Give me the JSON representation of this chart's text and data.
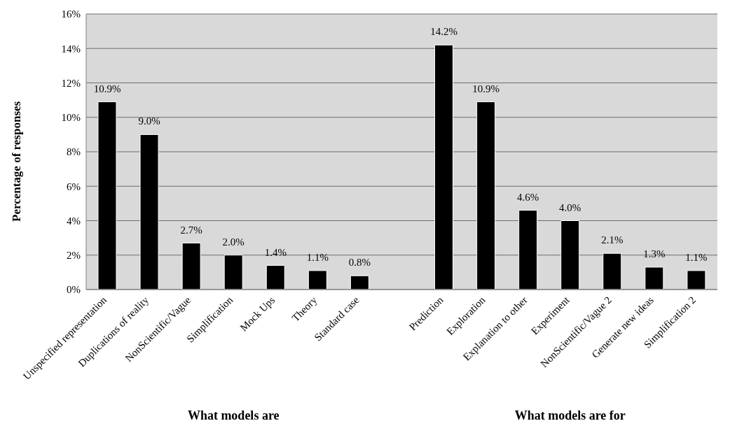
{
  "chart_data": {
    "type": "bar",
    "ylabel": "Percentage of responses",
    "categories": [
      "Unspecified representation",
      "Duplications of reality",
      "NonScientific/Vague",
      "Simplification",
      "Mock Ups",
      "Theory",
      "Standard case",
      null,
      "Prediction",
      "Exploration",
      "Explanation to other",
      "Experiment",
      "NonScientific/Vague 2",
      "Generate new ideas",
      "Simplification 2"
    ],
    "values": [
      10.9,
      9.0,
      2.7,
      2.0,
      1.4,
      1.1,
      0.8,
      null,
      14.2,
      10.9,
      4.6,
      4.0,
      2.1,
      1.3,
      1.1
    ],
    "value_labels": [
      "10.9%",
      "9.0%",
      "2.7%",
      "2.0%",
      "1.4%",
      "1.1%",
      "0.8%",
      null,
      "14.2%",
      "10.9%",
      "4.6%",
      "4.0%",
      "2.1%",
      "1.3%",
      "1.1%"
    ],
    "color": "#000000",
    "ylim": [
      0,
      16
    ],
    "yticks": [
      {
        "value": 0,
        "label": "0%"
      },
      {
        "value": 2,
        "label": "2%"
      },
      {
        "value": 4,
        "label": "4%"
      },
      {
        "value": 6,
        "label": "6%"
      },
      {
        "value": 8,
        "label": "8%"
      },
      {
        "value": 10,
        "label": "10%"
      },
      {
        "value": 12,
        "label": "12%"
      },
      {
        "value": 14,
        "label": "14%"
      },
      {
        "value": 16,
        "label": "16%"
      }
    ],
    "grid": "y",
    "legend": false,
    "annotations": [
      "What models are",
      "What models are for"
    ]
  }
}
